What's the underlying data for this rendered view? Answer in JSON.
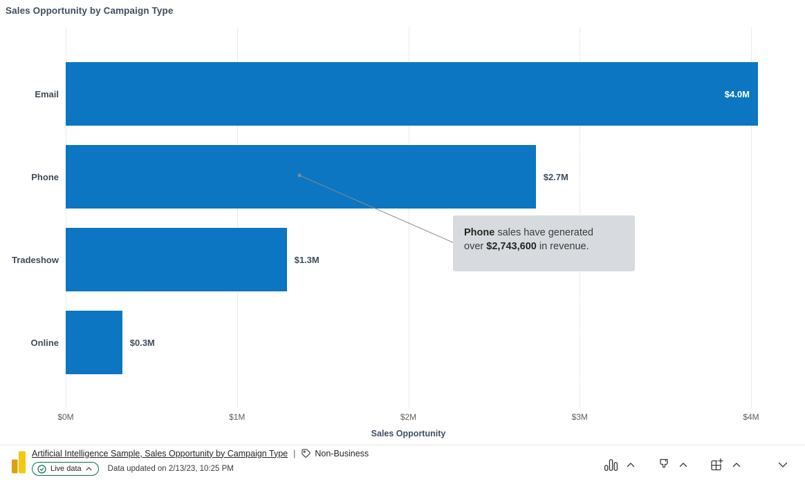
{
  "chart_data": {
    "type": "bar",
    "orientation": "horizontal",
    "title": "Sales Opportunity by Campaign Type",
    "categories": [
      "Email",
      "Phone",
      "Tradeshow",
      "Online"
    ],
    "values": [
      4.04,
      2.7436,
      1.29,
      0.33
    ],
    "value_labels": [
      "$4.0M",
      "$2.7M",
      "$1.3M",
      "$0.3M"
    ],
    "label_inside": [
      true,
      false,
      false,
      false
    ],
    "units": "millions USD",
    "xlabel": "Sales Opportunity",
    "xlim": [
      0,
      4
    ],
    "xtick_labels": [
      "$0M",
      "$1M",
      "$2M",
      "$3M",
      "$4M"
    ],
    "grid": "vertical-dotted",
    "legend": "none",
    "bar_color": "#0C76C2"
  },
  "annotation": {
    "line1": [
      {
        "t": "Phone",
        "b": true
      },
      {
        "t": " sales have generated",
        "b": false
      }
    ],
    "line2": [
      {
        "t": "over ",
        "b": false
      },
      {
        "t": "$2,743,600",
        "b": true
      },
      {
        "t": " in revenue.",
        "b": false
      }
    ]
  },
  "footer": {
    "source_link": "Artificial Intelligence Sample, Sales Opportunity by Campaign Type",
    "separator": "|",
    "sensitivity_label": "Non-Business",
    "live_data_label": "Live data",
    "updated_text": "Data updated on 2/13/23, 10:25 PM"
  },
  "colors": {
    "bar": "#0C76C2",
    "accent_green": "#0A6C57",
    "callout_bg": "#D7DBDF",
    "title_text": "#3E4E60"
  }
}
